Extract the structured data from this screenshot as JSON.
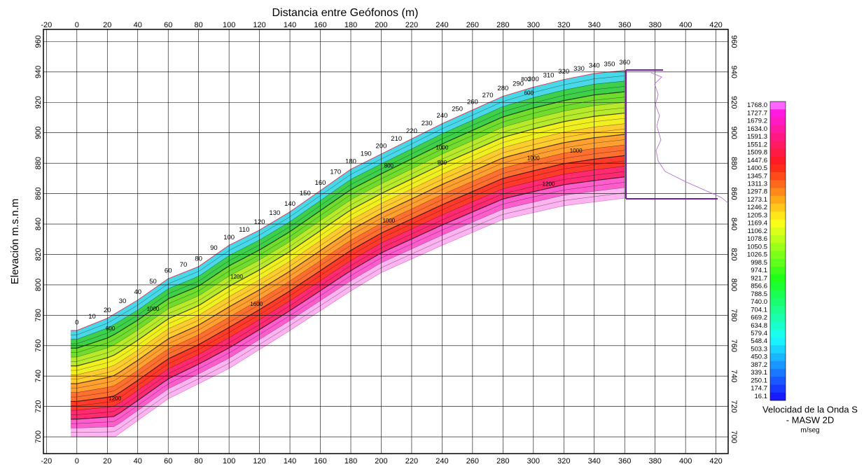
{
  "chart_data": {
    "type": "contour",
    "title": "Distancia entre Geófonos (m)",
    "y_label": "Elevación m.s.n.m",
    "xlim": [
      -22,
      428
    ],
    "ylim": [
      689,
      968
    ],
    "xticks": [
      -20,
      0,
      20,
      40,
      60,
      80,
      100,
      120,
      140,
      160,
      180,
      200,
      220,
      240,
      260,
      280,
      300,
      320,
      340,
      360,
      380,
      400,
      420
    ],
    "yticks": [
      700,
      720,
      740,
      760,
      780,
      800,
      820,
      840,
      860,
      880,
      900,
      920,
      940,
      960
    ],
    "grid": true,
    "surface": {
      "x": [
        -4,
        0,
        20,
        40,
        60,
        80,
        100,
        120,
        140,
        160,
        180,
        200,
        220,
        240,
        260,
        280,
        300,
        320,
        340,
        360
      ],
      "y": [
        770,
        770,
        778,
        790,
        804,
        812,
        826,
        836,
        848,
        862,
        876,
        886,
        896,
        906,
        915,
        924,
        930,
        935,
        939,
        941
      ]
    },
    "bottom": {
      "x": [
        -4,
        25,
        60,
        100,
        140,
        180,
        200,
        240,
        280,
        320,
        360
      ],
      "y": [
        700,
        700,
        725,
        745,
        770,
        796,
        808,
        826,
        843,
        852,
        857
      ]
    },
    "geophones": [
      0,
      10,
      20,
      30,
      40,
      50,
      60,
      70,
      80,
      90,
      100,
      110,
      120,
      130,
      140,
      150,
      160,
      170,
      180,
      190,
      200,
      210,
      220,
      230,
      240,
      250,
      260,
      270,
      280,
      290,
      300,
      310,
      320,
      330,
      340,
      350,
      360
    ],
    "contour_labels": [
      {
        "text": "600",
        "x": 22,
        "y": 771
      },
      {
        "text": "1000",
        "x": 50,
        "y": 784
      },
      {
        "text": "1200",
        "x": 105,
        "y": 805
      },
      {
        "text": "1600",
        "x": 118,
        "y": 787
      },
      {
        "text": "1200",
        "x": 25,
        "y": 725
      },
      {
        "text": "800",
        "x": 205,
        "y": 878
      },
      {
        "text": "800",
        "x": 240,
        "y": 880
      },
      {
        "text": "1000",
        "x": 205,
        "y": 842
      },
      {
        "text": "1000",
        "x": 240,
        "y": 890
      },
      {
        "text": "1000",
        "x": 300,
        "y": 883
      },
      {
        "text": "1000",
        "x": 328,
        "y": 888
      },
      {
        "text": "1200",
        "x": 310,
        "y": 866
      },
      {
        "text": "800",
        "x": 295,
        "y": 935
      },
      {
        "text": "600",
        "x": 297,
        "y": 926
      }
    ],
    "colorbar": {
      "levels": [
        {
          "value": 1768,
          "label": "1768.0"
        },
        1727.7,
        1679.2,
        {
          "value": 1634,
          "label": "1634.0"
        },
        1591.3,
        1551.2,
        1509.8,
        1447.6,
        1400.5,
        1345.7,
        1311.3,
        1297.8,
        1273.1,
        1246.2,
        1205.3,
        1169.4,
        1106.2,
        1078.6,
        1050.5,
        1026.5,
        998.5,
        974.1,
        921.7,
        856.6,
        788.5,
        {
          "value": 740,
          "label": "740.0"
        },
        704.1,
        669.2,
        634.8,
        579.4,
        548.4,
        503.3,
        450.3,
        387.2,
        339.1,
        250.1,
        174.7,
        16.1
      ],
      "title": "Velocidad de la Onda S",
      "subtitle": "- MASW 2D",
      "unit": "m/seg"
    }
  }
}
